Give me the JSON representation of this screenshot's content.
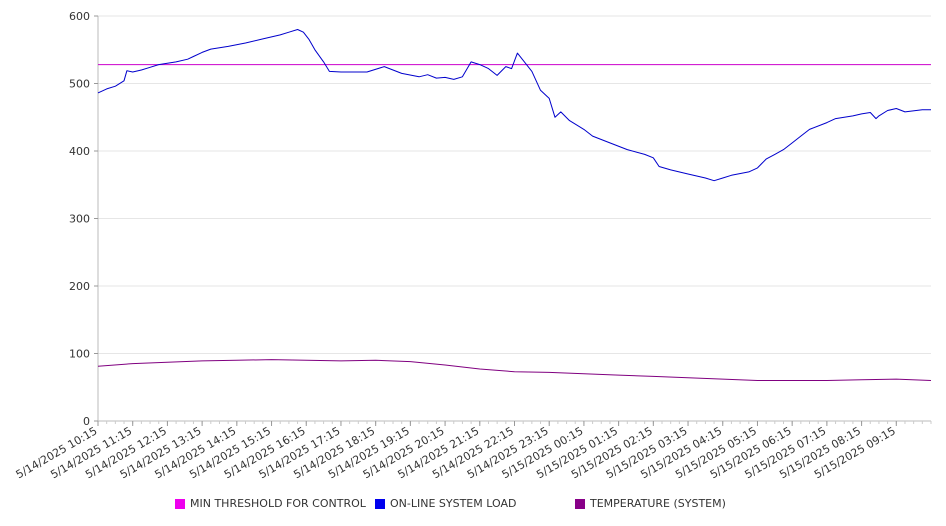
{
  "chart_data": {
    "type": "line",
    "title": "",
    "xlabel": "",
    "ylabel": "",
    "ylim": [
      0,
      600
    ],
    "yticks": [
      0,
      100,
      200,
      300,
      400,
      500,
      600
    ],
    "grid": true,
    "legend_position": "bottom",
    "x_tick_labels": [
      "5/14/2025 10:15",
      "5/14/2025 11:15",
      "5/14/2025 12:15",
      "5/14/2025 13:15",
      "5/14/2025 14:15",
      "5/14/2025 15:15",
      "5/14/2025 16:15",
      "5/14/2025 17:15",
      "5/14/2025 18:15",
      "5/14/2025 19:15",
      "5/14/2025 20:15",
      "5/14/2025 21:15",
      "5/14/2025 22:15",
      "5/14/2025 23:15",
      "5/15/2025 00:15",
      "5/15/2025 01:15",
      "5/15/2025 02:15",
      "5/15/2025 03:15",
      "5/15/2025 04:15",
      "5/15/2025 05:15",
      "5/15/2025 06:15",
      "5/15/2025 07:15",
      "5/15/2025 08:15",
      "5/15/2025 09:15"
    ],
    "x_start": "5/14/2025 10:15",
    "x_end": "5/15/2025 10:15",
    "series": [
      {
        "name": "MIN THRESHOLD FOR CONTROL",
        "color": "#cc00cc",
        "legend_color": "#ee00ee",
        "points": [
          [
            "5/14/2025 10:15",
            528
          ],
          [
            "5/15/2025 10:15",
            528
          ]
        ]
      },
      {
        "name": "ON-LINE SYSTEM LOAD",
        "color": "#0000cc",
        "legend_color": "#0000ee",
        "points": [
          [
            "5/14/2025 10:15",
            486
          ],
          [
            "5/14/2025 10:30",
            492
          ],
          [
            "5/14/2025 10:45",
            496
          ],
          [
            "5/14/2025 11:00",
            504
          ],
          [
            "5/14/2025 11:05",
            519
          ],
          [
            "5/14/2025 11:15",
            517
          ],
          [
            "5/14/2025 11:30",
            520
          ],
          [
            "5/14/2025 11:45",
            524
          ],
          [
            "5/14/2025 12:00",
            528
          ],
          [
            "5/14/2025 12:30",
            532
          ],
          [
            "5/14/2025 12:50",
            536
          ],
          [
            "5/14/2025 13:00",
            540
          ],
          [
            "5/14/2025 13:15",
            546
          ],
          [
            "5/14/2025 13:30",
            551
          ],
          [
            "5/14/2025 14:00",
            555
          ],
          [
            "5/14/2025 14:30",
            560
          ],
          [
            "5/14/2025 15:00",
            566
          ],
          [
            "5/14/2025 15:30",
            572
          ],
          [
            "5/14/2025 15:45",
            576
          ],
          [
            "5/14/2025 16:00",
            580
          ],
          [
            "5/14/2025 16:10",
            576
          ],
          [
            "5/14/2025 16:20",
            565
          ],
          [
            "5/14/2025 16:30",
            550
          ],
          [
            "5/14/2025 16:45",
            532
          ],
          [
            "5/14/2025 16:55",
            518
          ],
          [
            "5/14/2025 17:15",
            517
          ],
          [
            "5/14/2025 18:00",
            517
          ],
          [
            "5/14/2025 18:30",
            525
          ],
          [
            "5/14/2025 18:45",
            520
          ],
          [
            "5/14/2025 19:00",
            515
          ],
          [
            "5/14/2025 19:30",
            510
          ],
          [
            "5/14/2025 19:45",
            513
          ],
          [
            "5/14/2025 20:00",
            508
          ],
          [
            "5/14/2025 20:15",
            509
          ],
          [
            "5/14/2025 20:30",
            506
          ],
          [
            "5/14/2025 20:45",
            510
          ],
          [
            "5/14/2025 21:00",
            532
          ],
          [
            "5/14/2025 21:15",
            528
          ],
          [
            "5/14/2025 21:30",
            522
          ],
          [
            "5/14/2025 21:45",
            512
          ],
          [
            "5/14/2025 22:00",
            525
          ],
          [
            "5/14/2025 22:10",
            522
          ],
          [
            "5/14/2025 22:20",
            545
          ],
          [
            "5/14/2025 22:45",
            518
          ],
          [
            "5/14/2025 23:00",
            490
          ],
          [
            "5/14/2025 23:15",
            478
          ],
          [
            "5/14/2025 23:25",
            450
          ],
          [
            "5/14/2025 23:35",
            458
          ],
          [
            "5/14/2025 23:50",
            445
          ],
          [
            "5/15/2025 00:15",
            432
          ],
          [
            "5/15/2025 00:30",
            422
          ],
          [
            "5/15/2025 01:00",
            412
          ],
          [
            "5/15/2025 01:30",
            402
          ],
          [
            "5/15/2025 02:00",
            395
          ],
          [
            "5/15/2025 02:15",
            390
          ],
          [
            "5/15/2025 02:25",
            377
          ],
          [
            "5/15/2025 02:45",
            372
          ],
          [
            "5/15/2025 03:15",
            366
          ],
          [
            "5/15/2025 03:45",
            360
          ],
          [
            "5/15/2025 04:00",
            356
          ],
          [
            "5/15/2025 04:15",
            360
          ],
          [
            "5/15/2025 04:30",
            364
          ],
          [
            "5/15/2025 05:00",
            369
          ],
          [
            "5/15/2025 05:15",
            375
          ],
          [
            "5/15/2025 05:30",
            388
          ],
          [
            "5/15/2025 05:45",
            395
          ],
          [
            "5/15/2025 06:00",
            402
          ],
          [
            "5/15/2025 06:15",
            412
          ],
          [
            "5/15/2025 06:30",
            422
          ],
          [
            "5/15/2025 06:45",
            432
          ],
          [
            "5/15/2025 07:15",
            442
          ],
          [
            "5/15/2025 07:30",
            448
          ],
          [
            "5/15/2025 08:00",
            452
          ],
          [
            "5/15/2025 08:15",
            455
          ],
          [
            "5/15/2025 08:30",
            457
          ],
          [
            "5/15/2025 08:40",
            448
          ],
          [
            "5/15/2025 08:45",
            452
          ],
          [
            "5/15/2025 09:00",
            460
          ],
          [
            "5/15/2025 09:15",
            463
          ],
          [
            "5/15/2025 09:30",
            458
          ],
          [
            "5/15/2025 10:00",
            461
          ],
          [
            "5/15/2025 10:15",
            461
          ]
        ]
      },
      {
        "name": "TEMPERATURE (SYSTEM)",
        "color": "#800080",
        "legend_color": "#880088",
        "points": [
          [
            "5/14/2025 10:15",
            81
          ],
          [
            "5/14/2025 11:15",
            85
          ],
          [
            "5/14/2025 12:15",
            87
          ],
          [
            "5/14/2025 13:15",
            89
          ],
          [
            "5/14/2025 14:15",
            90
          ],
          [
            "5/14/2025 15:15",
            91
          ],
          [
            "5/14/2025 16:15",
            90
          ],
          [
            "5/14/2025 17:15",
            89
          ],
          [
            "5/14/2025 18:15",
            90
          ],
          [
            "5/14/2025 19:15",
            88
          ],
          [
            "5/14/2025 20:15",
            83
          ],
          [
            "5/14/2025 21:15",
            77
          ],
          [
            "5/14/2025 22:15",
            73
          ],
          [
            "5/14/2025 23:15",
            72
          ],
          [
            "5/15/2025 00:15",
            70
          ],
          [
            "5/15/2025 01:15",
            68
          ],
          [
            "5/15/2025 02:15",
            66
          ],
          [
            "5/15/2025 03:15",
            64
          ],
          [
            "5/15/2025 04:15",
            62
          ],
          [
            "5/15/2025 05:15",
            60
          ],
          [
            "5/15/2025 06:15",
            60
          ],
          [
            "5/15/2025 07:15",
            60
          ],
          [
            "5/15/2025 08:15",
            61
          ],
          [
            "5/15/2025 09:15",
            62
          ],
          [
            "5/15/2025 10:15",
            60
          ]
        ]
      }
    ]
  }
}
